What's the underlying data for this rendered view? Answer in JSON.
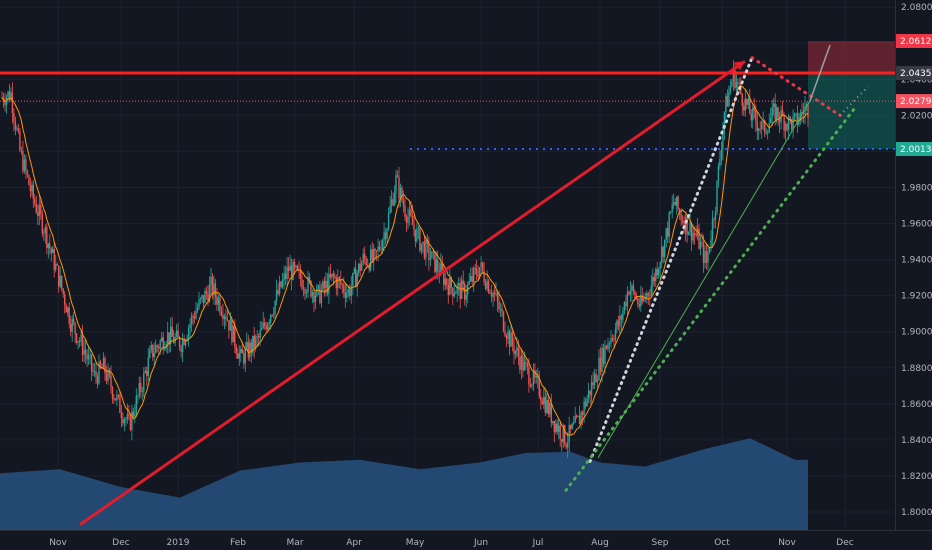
{
  "chart_data": {
    "type": "candlestick",
    "x_ticks": [
      "Nov",
      "Dec",
      "2019",
      "Feb",
      "Mar",
      "Apr",
      "May",
      "Jun",
      "Jul",
      "Aug",
      "Sep",
      "Oct",
      "Nov",
      "Dec"
    ],
    "y_ticks": [
      "2.08000",
      "2.06000",
      "2.04000",
      "2.02000",
      "2.00000",
      "1.98000",
      "1.96000",
      "1.94000",
      "1.92000",
      "1.90000",
      "1.88000",
      "1.86000",
      "1.84000",
      "1.82000",
      "1.80000"
    ],
    "ylim": [
      1.79,
      2.084
    ],
    "price_tags": [
      {
        "label": "2.06126",
        "value": 2.06126,
        "color": "#f23645"
      },
      {
        "label": "2.04350",
        "value": 2.0435,
        "color": "#363a45"
      },
      {
        "label": "2.02792",
        "value": 2.02792,
        "color": "#f7525f"
      },
      {
        "label": "2.00134",
        "value": 2.00134,
        "color": "#22ab94"
      }
    ],
    "anchor_closes": [
      [
        0,
        2.03
      ],
      [
        6,
        2.032
      ],
      [
        12,
        2.0
      ],
      [
        20,
        1.976
      ],
      [
        28,
        1.958
      ],
      [
        38,
        1.93
      ],
      [
        46,
        1.906
      ],
      [
        55,
        1.89
      ],
      [
        62,
        1.875
      ],
      [
        68,
        1.88
      ],
      [
        78,
        1.86
      ],
      [
        85,
        1.848
      ],
      [
        92,
        1.866
      ],
      [
        100,
        1.888
      ],
      [
        110,
        1.898
      ],
      [
        120,
        1.894
      ],
      [
        130,
        1.912
      ],
      [
        140,
        1.925
      ],
      [
        150,
        1.91
      ],
      [
        160,
        1.885
      ],
      [
        172,
        1.896
      ],
      [
        182,
        1.915
      ],
      [
        192,
        1.935
      ],
      [
        202,
        1.928
      ],
      [
        212,
        1.92
      ],
      [
        222,
        1.93
      ],
      [
        232,
        1.922
      ],
      [
        242,
        1.94
      ],
      [
        250,
        1.94
      ],
      [
        258,
        1.96
      ],
      [
        264,
        1.984
      ],
      [
        270,
        1.968
      ],
      [
        280,
        1.95
      ],
      [
        290,
        1.938
      ],
      [
        300,
        1.925
      ],
      [
        310,
        1.922
      ],
      [
        320,
        1.936
      ],
      [
        330,
        1.92
      ],
      [
        340,
        1.896
      ],
      [
        350,
        1.88
      ],
      [
        360,
        1.868
      ],
      [
        370,
        1.85
      ],
      [
        378,
        1.84
      ],
      [
        386,
        1.85
      ],
      [
        396,
        1.872
      ],
      [
        406,
        1.895
      ],
      [
        414,
        1.905
      ],
      [
        420,
        1.925
      ],
      [
        428,
        1.914
      ],
      [
        436,
        1.928
      ],
      [
        444,
        1.95
      ],
      [
        450,
        1.972
      ],
      [
        458,
        1.96
      ],
      [
        466,
        1.952
      ],
      [
        472,
        1.938
      ],
      [
        478,
        1.972
      ],
      [
        484,
        2.022
      ],
      [
        490,
        2.043
      ],
      [
        496,
        2.03
      ],
      [
        502,
        2.02
      ],
      [
        510,
        2.012
      ],
      [
        518,
        2.022
      ],
      [
        526,
        2.016
      ],
      [
        532,
        2.016
      ],
      [
        538,
        2.024
      ]
    ],
    "volume_profile": [
      [
        0,
        0.42
      ],
      [
        40,
        0.45
      ],
      [
        80,
        0.32
      ],
      [
        120,
        0.24
      ],
      [
        160,
        0.44
      ],
      [
        200,
        0.5
      ],
      [
        240,
        0.52
      ],
      [
        280,
        0.45
      ],
      [
        320,
        0.5
      ],
      [
        350,
        0.57
      ],
      [
        380,
        0.58
      ],
      [
        400,
        0.5
      ],
      [
        430,
        0.47
      ],
      [
        470,
        0.6
      ],
      [
        500,
        0.68
      ],
      [
        530,
        0.52
      ]
    ],
    "volume_scale_max": 1.0
  }
}
